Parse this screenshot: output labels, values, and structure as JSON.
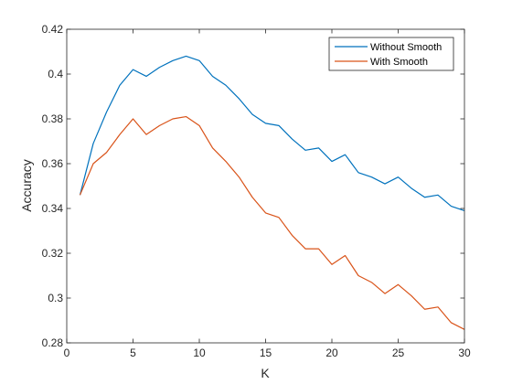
{
  "chart_data": {
    "type": "line",
    "xlabel": "K",
    "ylabel": "Accuracy",
    "xlim": [
      0,
      30
    ],
    "ylim": [
      0.28,
      0.42
    ],
    "x_ticks": [
      "0",
      "5",
      "10",
      "15",
      "20",
      "25",
      "30"
    ],
    "y_ticks": [
      "0.28",
      "0.3",
      "0.32",
      "0.34",
      "0.36",
      "0.38",
      "0.4",
      "0.42"
    ],
    "grid": false,
    "legend_position": "top-right",
    "x": [
      1,
      2,
      3,
      4,
      5,
      6,
      7,
      8,
      9,
      10,
      11,
      12,
      13,
      14,
      15,
      16,
      17,
      18,
      19,
      20,
      21,
      22,
      23,
      24,
      25,
      26,
      27,
      28,
      29,
      30
    ],
    "series": [
      {
        "name": "Without Smooth",
        "color": "#0072bd",
        "values": [
          0.346,
          0.369,
          0.383,
          0.395,
          0.402,
          0.399,
          0.403,
          0.406,
          0.408,
          0.406,
          0.399,
          0.395,
          0.389,
          0.382,
          0.378,
          0.377,
          0.371,
          0.366,
          0.367,
          0.361,
          0.364,
          0.356,
          0.354,
          0.351,
          0.354,
          0.349,
          0.345,
          0.346,
          0.341,
          0.339
        ]
      },
      {
        "name": "With Smooth",
        "color": "#d95319",
        "values": [
          0.346,
          0.36,
          0.365,
          0.373,
          0.38,
          0.373,
          0.377,
          0.38,
          0.381,
          0.377,
          0.367,
          0.361,
          0.354,
          0.345,
          0.338,
          0.336,
          0.328,
          0.322,
          0.322,
          0.315,
          0.319,
          0.31,
          0.307,
          0.302,
          0.306,
          0.301,
          0.295,
          0.296,
          0.289,
          0.286
        ]
      }
    ]
  }
}
